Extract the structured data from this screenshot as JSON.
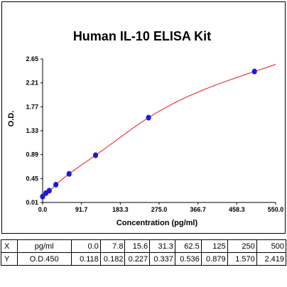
{
  "chart_data": {
    "type": "scatter",
    "title": "Human IL-10 ELISA Kit",
    "xlabel": "Concentration (pg/ml)",
    "ylabel": "O.D.",
    "xlim": [
      0,
      550
    ],
    "ylim": [
      0.01,
      2.65
    ],
    "x_ticks": [
      "0.0",
      "91.7",
      "183.3",
      "275.0",
      "366.7",
      "458.3",
      "550.0"
    ],
    "y_ticks": [
      "0.01",
      "0.45",
      "0.89",
      "1.33",
      "1.77",
      "2.21",
      "2.65"
    ],
    "grid": false,
    "point_color": "#1a1adb",
    "curve_color": "#e8141e",
    "series": [
      {
        "x": [
          0.0,
          7.8,
          15.6,
          31.3,
          62.5,
          125,
          250,
          500
        ],
        "y": [
          0.118,
          0.182,
          0.227,
          0.337,
          0.536,
          0.879,
          1.57,
          2.419
        ],
        "fit": "smooth curve"
      }
    ]
  },
  "table": {
    "rows": [
      {
        "label": "X",
        "unit": "pg/ml",
        "values": [
          "0.0",
          "7.8",
          "15.6",
          "31.3",
          "62.5",
          "125",
          "250",
          "500"
        ]
      },
      {
        "label": "Y",
        "unit": "O.D.450",
        "values": [
          "0.118",
          "0.182",
          "0.227",
          "0.337",
          "0.536",
          "0.879",
          "1.570",
          "2.419"
        ]
      }
    ]
  }
}
